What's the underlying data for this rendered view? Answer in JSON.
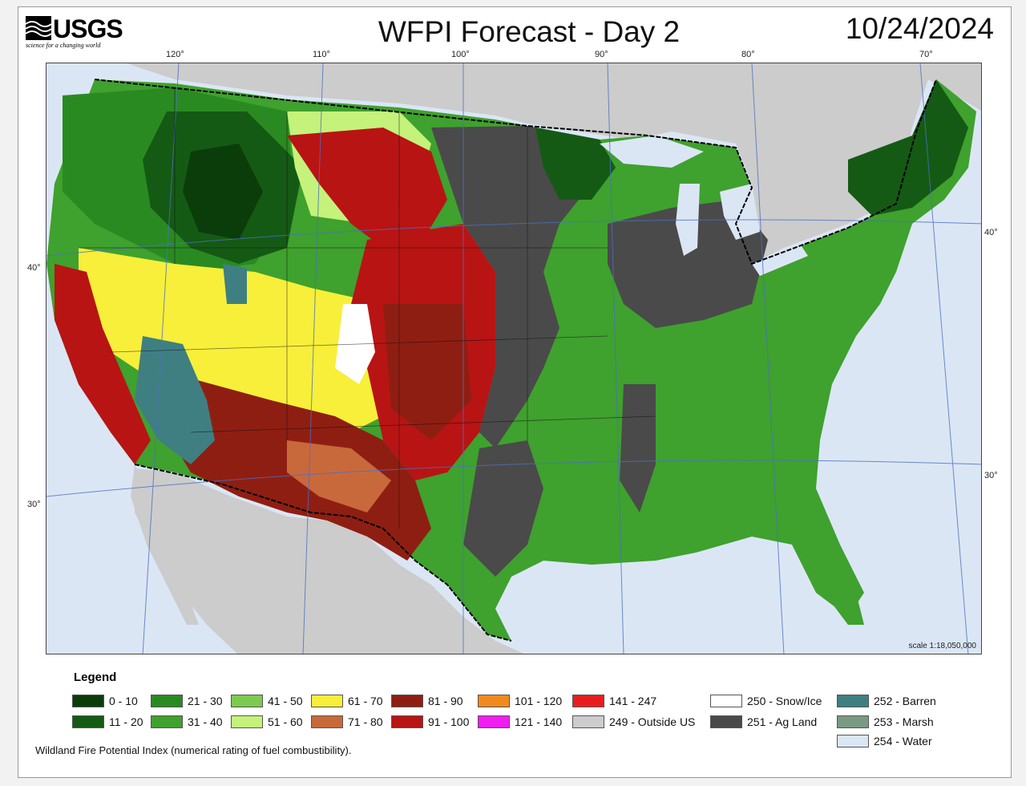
{
  "header": {
    "logo_text": "USGS",
    "logo_tagline": "science for a changing world",
    "title": "WFPI Forecast - Day 2",
    "date": "10/24/2024"
  },
  "graticule": {
    "longitudes": [
      "120°",
      "110°",
      "100°",
      "90°",
      "80°",
      "70°"
    ],
    "latitudes": [
      "40°",
      "30°",
      "40°",
      "30°"
    ]
  },
  "map": {
    "scale": "scale 1:18,050,000"
  },
  "legend": {
    "title": "Legend",
    "items": [
      {
        "label": "0 - 10",
        "color": "#0b3d0b"
      },
      {
        "label": "11 - 20",
        "color": "#145a14"
      },
      {
        "label": "21 - 30",
        "color": "#2a8a22"
      },
      {
        "label": "31 - 40",
        "color": "#3fa12e"
      },
      {
        "label": "41 - 50",
        "color": "#7ccb4e"
      },
      {
        "label": "51 - 60",
        "color": "#c4f27a"
      },
      {
        "label": "61 - 70",
        "color": "#f7ef3a"
      },
      {
        "label": "71 - 80",
        "color": "#c8693c"
      },
      {
        "label": "81 - 90",
        "color": "#8f1e12"
      },
      {
        "label": "91 - 100",
        "color": "#b81414"
      },
      {
        "label": "101 - 120",
        "color": "#f08a1e"
      },
      {
        "label": "121 - 140",
        "color": "#f01ef0"
      },
      {
        "label": "141 - 247",
        "color": "#e81e1e"
      },
      {
        "label": "249 - Outside US",
        "color": "#cccccc"
      },
      {
        "label": "250 - Snow/Ice",
        "color": "#ffffff"
      },
      {
        "label": "251 - Ag Land",
        "color": "#4a4a4a"
      },
      {
        "label": "252 - Barren",
        "color": "#3f7f82"
      },
      {
        "label": "253 - Marsh",
        "color": "#7a9a84"
      },
      {
        "label": "254 - Water",
        "color": "#dbe6f5"
      }
    ]
  },
  "footnote": "Wildland Fire Potential Index (numerical rating of fuel combustibility)."
}
